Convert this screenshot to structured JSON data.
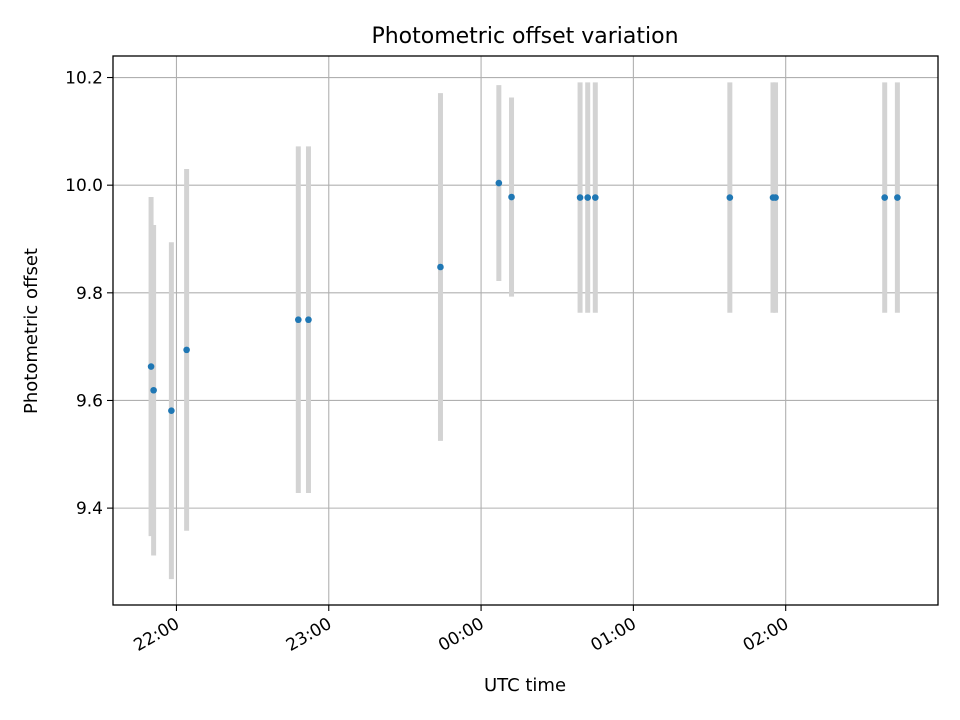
{
  "chart_data": {
    "type": "scatter",
    "title": "Photometric offset variation",
    "xlabel": "UTC time",
    "ylabel": "Photometric offset",
    "grid": true,
    "legend": "none",
    "x_axis_type": "time",
    "x_range": [
      "21:35",
      "03:00"
    ],
    "ylim": [
      9.22,
      10.24
    ],
    "x_ticks": [
      {
        "time": "22:00",
        "label": "22:00"
      },
      {
        "time": "23:00",
        "label": "23:00"
      },
      {
        "time": "00:00",
        "label": "00:00"
      },
      {
        "time": "01:00",
        "label": "01:00"
      },
      {
        "time": "02:00",
        "label": "02:00"
      }
    ],
    "y_ticks": [
      {
        "value": 9.4,
        "label": "9.4"
      },
      {
        "value": 9.6,
        "label": "9.6"
      },
      {
        "value": 9.8,
        "label": "9.8"
      },
      {
        "value": 10.0,
        "label": "10.0"
      },
      {
        "value": 10.2,
        "label": "10.2"
      }
    ],
    "series": [
      {
        "marker_color": "#1f77b4",
        "errorbar_color": "#d3d3d3",
        "points": [
          {
            "x": "21:50",
            "y": 9.663,
            "err": 0.315
          },
          {
            "x": "21:51",
            "y": 9.619,
            "err": 0.307
          },
          {
            "x": "21:58",
            "y": 9.581,
            "err": 0.313
          },
          {
            "x": "22:04",
            "y": 9.694,
            "err": 0.336
          },
          {
            "x": "22:48",
            "y": 9.75,
            "err": 0.322
          },
          {
            "x": "22:52",
            "y": 9.75,
            "err": 0.322
          },
          {
            "x": "23:44",
            "y": 9.848,
            "err": 0.323
          },
          {
            "x": "00:07",
            "y": 10.004,
            "err": 0.182
          },
          {
            "x": "00:12",
            "y": 9.978,
            "err": 0.185
          },
          {
            "x": "00:39",
            "y": 9.977,
            "err": 0.214
          },
          {
            "x": "00:42",
            "y": 9.977,
            "err": 0.214
          },
          {
            "x": "00:45",
            "y": 9.977,
            "err": 0.214
          },
          {
            "x": "01:38",
            "y": 9.977,
            "err": 0.214
          },
          {
            "x": "01:55",
            "y": 9.977,
            "err": 0.214
          },
          {
            "x": "01:56",
            "y": 9.977,
            "err": 0.214
          },
          {
            "x": "02:39",
            "y": 9.977,
            "err": 0.214
          },
          {
            "x": "02:44",
            "y": 9.977,
            "err": 0.214
          }
        ]
      }
    ]
  }
}
